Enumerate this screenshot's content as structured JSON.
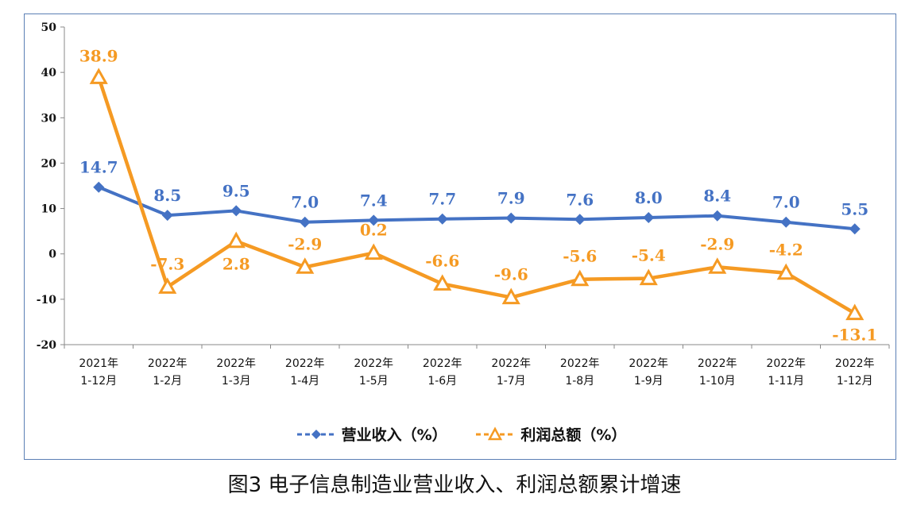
{
  "caption": "图3 电子信息制造业营业收入、利润总额累计增速",
  "chart_data": {
    "type": "line",
    "categories": [
      [
        "2021年",
        "1-12月"
      ],
      [
        "2022年",
        "1-2月"
      ],
      [
        "2022年",
        "1-3月"
      ],
      [
        "2022年",
        "1-4月"
      ],
      [
        "2022年",
        "1-5月"
      ],
      [
        "2022年",
        "1-6月"
      ],
      [
        "2022年",
        "1-7月"
      ],
      [
        "2022年",
        "1-8月"
      ],
      [
        "2022年",
        "1-9月"
      ],
      [
        "2022年",
        "1-10月"
      ],
      [
        "2022年",
        "1-11月"
      ],
      [
        "2022年",
        "1-12月"
      ]
    ],
    "series": [
      {
        "name": "营业收入（%）",
        "color": "#4472c4",
        "marker": "diamond",
        "values": [
          14.7,
          8.5,
          9.5,
          7.0,
          7.4,
          7.7,
          7.9,
          7.6,
          8.0,
          8.4,
          7.0,
          5.5
        ],
        "labels": [
          "14.7",
          "8.5",
          "9.5",
          "7.0",
          "7.4",
          "7.7",
          "7.9",
          "7.6",
          "8.0",
          "8.4",
          "7.0",
          "5.5"
        ]
      },
      {
        "name": "利润总额（%）",
        "color": "#f59a23",
        "marker": "triangle",
        "values": [
          38.9,
          -7.3,
          2.8,
          -2.9,
          0.2,
          -6.6,
          -9.6,
          -5.6,
          -5.4,
          -2.9,
          -4.2,
          -13.1
        ],
        "labels": [
          "38.9",
          "-7.3",
          "2.8",
          "-2.9",
          "0.2",
          "-6.6",
          "-9.6",
          "-5.6",
          "-5.4",
          "-2.9",
          "-4.2",
          "-13.1"
        ]
      }
    ],
    "ylim": [
      -20,
      50
    ],
    "yticks": [
      -20,
      -10,
      0,
      10,
      20,
      30,
      40,
      50
    ],
    "grid": false,
    "legend": "bottom-center"
  }
}
